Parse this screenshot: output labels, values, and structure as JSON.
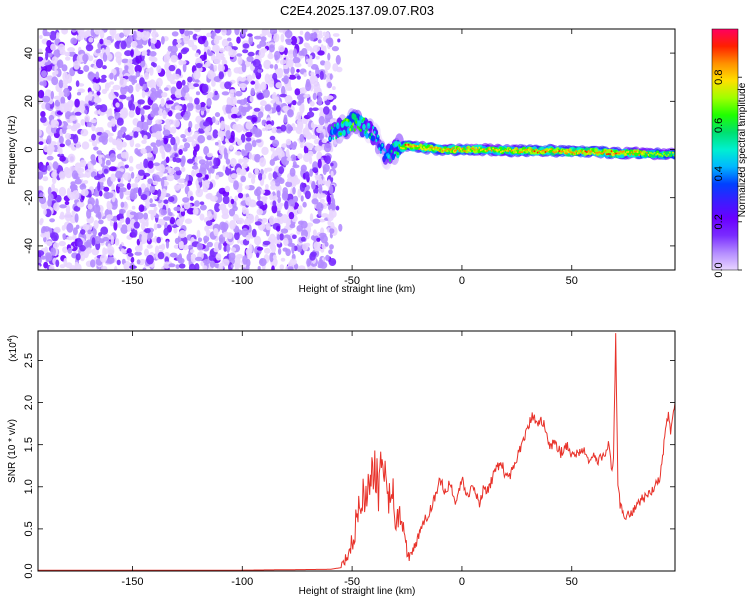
{
  "figure_title": "C2E4.2025.137.09.07.R03",
  "colormap": [
    "#e9d6ff",
    "#b48cff",
    "#7a2cff",
    "#6a00ff",
    "#3a1dff",
    "#0040ff",
    "#00b8ff",
    "#00f0d0",
    "#00e070",
    "#20ff00",
    "#a0ff00",
    "#ffe000",
    "#ff9000",
    "#ff2000",
    "#ff0060"
  ],
  "line_color": "#e8322a",
  "chart_data": [
    {
      "type": "heatmap",
      "title": "",
      "xlabel": "Height of straight line (km)",
      "ylabel": "Frequency (Hz)",
      "xlim": [
        -193,
        97
      ],
      "ylim": [
        -50,
        50
      ],
      "xticks": [
        -150,
        -100,
        -50,
        0,
        50
      ],
      "yticks": [
        -40,
        -20,
        0,
        20,
        40
      ],
      "colorbar": {
        "label": "Normalized spectral amplitude",
        "range": [
          0,
          1
        ],
        "ticks": [
          0.0,
          0.2,
          0.4,
          0.6,
          0.8
        ]
      },
      "noise_region_x": [
        -193,
        -58
      ],
      "signal_track": [
        {
          "x": -60,
          "y": 6,
          "amp": 0.5
        },
        {
          "x": -55,
          "y": 9,
          "amp": 0.6
        },
        {
          "x": -50,
          "y": 11,
          "amp": 0.7
        },
        {
          "x": -45,
          "y": 10,
          "amp": 0.6
        },
        {
          "x": -40,
          "y": 6,
          "amp": 0.5
        },
        {
          "x": -35,
          "y": -3,
          "amp": 0.45
        },
        {
          "x": -30,
          "y": 0,
          "amp": 0.6
        },
        {
          "x": -25,
          "y": 1.5,
          "amp": 0.9
        },
        {
          "x": -20,
          "y": 1,
          "amp": 0.8
        },
        {
          "x": -10,
          "y": 0,
          "amp": 0.85
        },
        {
          "x": 0,
          "y": 0,
          "amp": 0.85
        },
        {
          "x": 10,
          "y": 0,
          "amp": 0.8
        },
        {
          "x": 20,
          "y": -0.5,
          "amp": 0.8
        },
        {
          "x": 30,
          "y": -0.5,
          "amp": 0.85
        },
        {
          "x": 40,
          "y": -0.5,
          "amp": 0.85
        },
        {
          "x": 50,
          "y": -1,
          "amp": 0.85
        },
        {
          "x": 60,
          "y": -1,
          "amp": 0.85
        },
        {
          "x": 70,
          "y": -1.5,
          "amp": 0.85
        },
        {
          "x": 80,
          "y": -1.5,
          "amp": 0.8
        },
        {
          "x": 90,
          "y": -2,
          "amp": 0.75
        },
        {
          "x": 97,
          "y": -2,
          "amp": 0.7
        }
      ]
    },
    {
      "type": "line",
      "title": "",
      "xlabel": "Height of straight line (km)",
      "ylabel": "SNR (10 * v/v)",
      "scale_label": "(x10",
      "scale_exponent": "4",
      "xlim": [
        -193,
        97
      ],
      "ylim": [
        0,
        2.85
      ],
      "xticks": [
        -150,
        -100,
        -50,
        0,
        50
      ],
      "yticks": [
        0.0,
        0.5,
        1.0,
        1.5,
        2.0,
        2.5
      ],
      "ytick_labels": [
        "0.0",
        "0.5",
        "1.0",
        "1.5",
        "2.0",
        "2.5"
      ],
      "series": [
        {
          "x": [
            -193,
            -150,
            -100,
            -60,
            -55,
            -52,
            -50,
            -48,
            -46,
            -44,
            -42,
            -40,
            -38,
            -36,
            -34,
            -32,
            -30,
            -28,
            -26,
            -24,
            -22,
            -20,
            -18,
            -15,
            -12,
            -10,
            -8,
            -5,
            -3,
            0,
            3,
            5,
            8,
            10,
            12,
            15,
            18,
            20,
            22,
            25,
            28,
            30,
            32,
            34,
            36,
            38,
            40,
            42,
            45,
            48,
            50,
            52,
            55,
            58,
            60,
            62,
            65,
            67,
            68,
            69,
            70,
            71,
            72,
            74,
            76,
            78,
            80,
            82,
            85,
            88,
            90,
            92,
            94,
            95,
            96,
            97
          ],
          "y": [
            0.01,
            0.01,
            0.01,
            0.02,
            0.04,
            0.15,
            0.35,
            0.6,
            0.8,
            0.9,
            1.1,
            1.25,
            1.0,
            1.4,
            0.8,
            1.1,
            0.5,
            0.7,
            0.3,
            0.15,
            0.25,
            0.4,
            0.55,
            0.7,
            0.9,
            1.1,
            0.95,
            1.05,
            0.75,
            1.1,
            0.85,
            1.05,
            0.8,
            1.0,
            0.95,
            1.2,
            1.3,
            1.1,
            1.15,
            1.35,
            1.55,
            1.7,
            1.85,
            1.75,
            1.8,
            1.7,
            1.45,
            1.55,
            1.4,
            1.5,
            1.35,
            1.4,
            1.45,
            1.3,
            1.35,
            1.3,
            1.4,
            1.5,
            1.2,
            1.3,
            2.85,
            1.0,
            0.8,
            0.65,
            0.7,
            0.7,
            0.8,
            0.85,
            0.9,
            1.0,
            1.1,
            1.5,
            1.9,
            1.6,
            1.8,
            2.0
          ]
        }
      ]
    }
  ]
}
